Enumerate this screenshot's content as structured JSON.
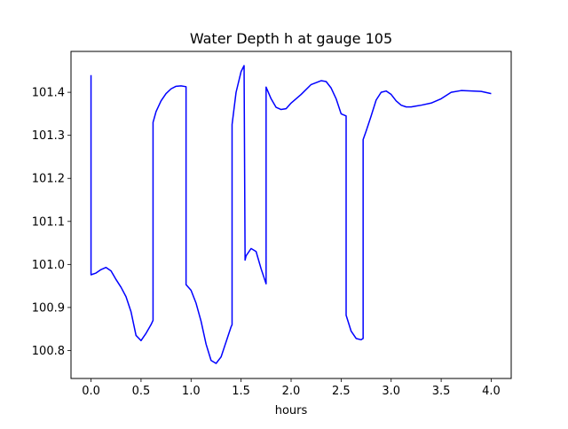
{
  "chart_data": {
    "type": "line",
    "title": "Water Depth h at gauge 105",
    "xlabel": "hours",
    "ylabel": "",
    "xlim": [
      -0.2,
      4.2
    ],
    "ylim": [
      100.735,
      101.495
    ],
    "xticks": [
      0.0,
      0.5,
      1.0,
      1.5,
      2.0,
      2.5,
      3.0,
      3.5,
      4.0
    ],
    "xtick_labels": [
      "0.0",
      "0.5",
      "1.0",
      "1.5",
      "2.0",
      "2.5",
      "3.0",
      "3.5",
      "4.0"
    ],
    "yticks": [
      100.8,
      100.9,
      101.0,
      101.1,
      101.2,
      101.3,
      101.4
    ],
    "ytick_labels": [
      "100.8",
      "100.9",
      "101.0",
      "101.1",
      "101.2",
      "101.3",
      "101.4"
    ],
    "grid": false,
    "legend": "none",
    "line_color": "#0000ff",
    "series": [
      {
        "x": [
          0.0,
          0.0,
          0.05,
          0.1,
          0.15,
          0.2,
          0.25,
          0.3,
          0.35,
          0.4,
          0.45,
          0.5,
          0.55,
          0.6,
          0.62,
          0.62,
          0.65,
          0.7,
          0.75,
          0.8,
          0.85,
          0.9,
          0.95,
          0.95,
          1.0,
          1.05,
          1.1,
          1.15,
          1.2,
          1.25,
          1.3,
          1.35,
          1.4,
          1.41,
          1.41,
          1.45,
          1.5,
          1.53,
          1.54,
          1.55,
          1.6,
          1.65,
          1.7,
          1.75,
          1.75,
          1.8,
          1.85,
          1.9,
          1.95,
          2.0,
          2.1,
          2.2,
          2.3,
          2.35,
          2.4,
          2.45,
          2.5,
          2.55,
          2.55,
          2.6,
          2.65,
          2.7,
          2.72,
          2.72,
          2.75,
          2.8,
          2.85,
          2.9,
          2.95,
          3.0,
          3.05,
          3.1,
          3.15,
          3.2,
          3.25,
          3.3,
          3.4,
          3.5,
          3.6,
          3.7,
          3.8,
          3.9,
          4.0
        ],
        "y": [
          101.44,
          100.976,
          100.98,
          100.988,
          100.993,
          100.985,
          100.965,
          100.947,
          100.925,
          100.89,
          100.835,
          100.823,
          100.84,
          100.86,
          100.87,
          101.33,
          101.355,
          101.38,
          101.397,
          101.408,
          101.414,
          101.415,
          101.413,
          100.953,
          100.94,
          100.91,
          100.868,
          100.815,
          100.777,
          100.77,
          100.785,
          100.82,
          100.855,
          100.86,
          101.325,
          101.4,
          101.448,
          101.462,
          101.01,
          101.02,
          101.037,
          101.03,
          100.99,
          100.955,
          101.412,
          101.385,
          101.365,
          101.36,
          101.362,
          101.375,
          101.395,
          101.418,
          101.427,
          101.425,
          101.41,
          101.385,
          101.35,
          101.345,
          100.882,
          100.845,
          100.828,
          100.825,
          100.828,
          101.29,
          101.31,
          101.345,
          101.382,
          101.4,
          101.403,
          101.395,
          101.38,
          101.37,
          101.366,
          101.366,
          101.368,
          101.37,
          101.375,
          101.385,
          101.4,
          101.404,
          101.403,
          101.402,
          101.397
        ]
      }
    ]
  }
}
